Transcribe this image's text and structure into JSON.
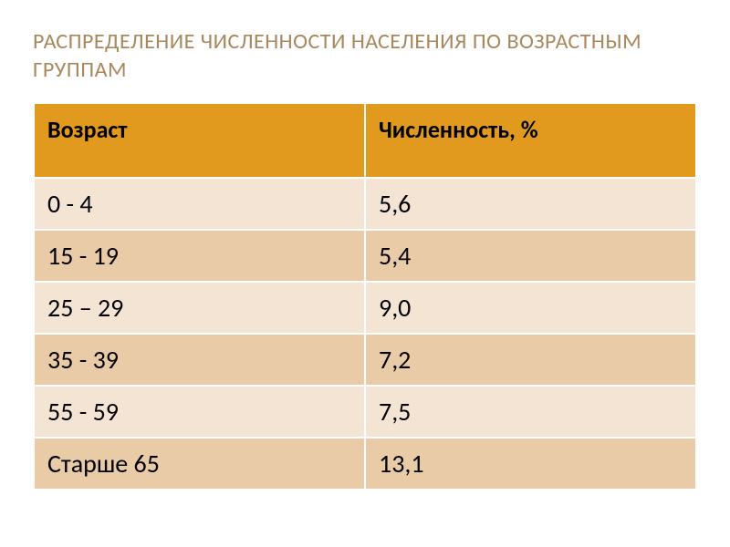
{
  "slide": {
    "title": "РАСПРЕДЕЛЕНИЕ ЧИСЛЕННОСТИ НАСЕЛЕНИЯ ПО ВОЗРАСТНЫМ ГРУППАМ",
    "background_color": "#ffffff",
    "title_color": "#a8885c",
    "title_fontsize": 24
  },
  "table": {
    "type": "table",
    "header_bg_color": "#e29a1e",
    "header_text_color": "#000000",
    "row_odd_bg_color": "#f3e4d4",
    "row_even_bg_color": "#e9cba8",
    "cell_text_color": "#000000",
    "border_color": "#ffffff",
    "header_fontsize": 26,
    "cell_fontsize": 28,
    "columns": [
      {
        "label": "Возраст",
        "width": "50%"
      },
      {
        "label": "Численность, %",
        "width": "50%"
      }
    ],
    "rows": [
      {
        "age": "0 - 4",
        "value": "5,6"
      },
      {
        "age": "15 - 19",
        "value": "5,4"
      },
      {
        "age": "25 – 29",
        "value": "9,0"
      },
      {
        "age": "35 - 39",
        "value": "7,2"
      },
      {
        "age": "55 - 59",
        "value": "7,5"
      },
      {
        "age": "Старше 65",
        "value": "13,1"
      }
    ]
  }
}
